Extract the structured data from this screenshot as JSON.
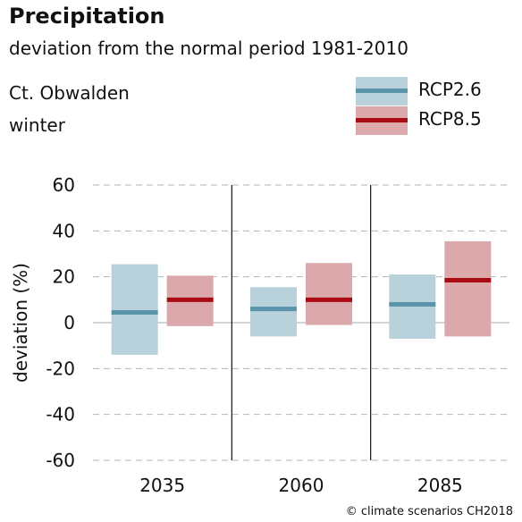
{
  "header": {
    "title": "Precipitation",
    "subtitle": "deviation from the normal period 1981-2010",
    "region": "Ct. Obwalden",
    "season": "winter"
  },
  "legend": [
    {
      "label": "RCP2.6",
      "box_color": "#b8d1da",
      "line_color": "#5b95ab"
    },
    {
      "label": "RCP8.5",
      "box_color": "#dba9ab",
      "line_color": "#a80c12"
    }
  ],
  "credit": "© climate scenarios CH2018",
  "chart_data": {
    "type": "bar",
    "title": "Precipitation",
    "subtitle": "deviation from the normal period 1981-2010",
    "ylabel": "deviation (%)",
    "ylim": [
      -60,
      60
    ],
    "yticks": [
      60,
      40,
      20,
      0,
      -20,
      -40,
      -60
    ],
    "categories": [
      "2035",
      "2060",
      "2085"
    ],
    "grid": "dashed horizontal",
    "legend_position": "top-right",
    "series": [
      {
        "name": "RCP2.6",
        "box_color": "#b8d1da",
        "line_color": "#5b95ab",
        "low": [
          -14,
          -6,
          -7
        ],
        "median": [
          4.5,
          6,
          8
        ],
        "high": [
          25.5,
          15.5,
          21
        ]
      },
      {
        "name": "RCP8.5",
        "box_color": "#dba9ab",
        "line_color": "#a80c12",
        "low": [
          -1.5,
          -1,
          -6
        ],
        "median": [
          10,
          10,
          18.5
        ],
        "high": [
          20.5,
          26,
          35.5
        ]
      }
    ]
  }
}
